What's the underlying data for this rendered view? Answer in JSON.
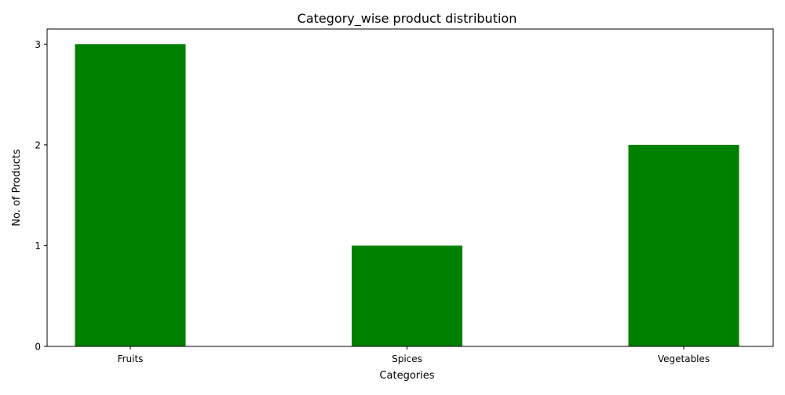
{
  "chart_data": {
    "type": "bar",
    "title": "Category_wise product distribution",
    "xlabel": "Categories",
    "ylabel": "No. of Products",
    "categories": [
      "Fruits",
      "Spices",
      "Vegetables"
    ],
    "values": [
      3,
      1,
      2
    ],
    "ylim": [
      0,
      3.15
    ],
    "yticks": [
      "0",
      "1",
      "2",
      "3"
    ],
    "bar_color": "#008000",
    "grid": false,
    "legend": "none"
  }
}
